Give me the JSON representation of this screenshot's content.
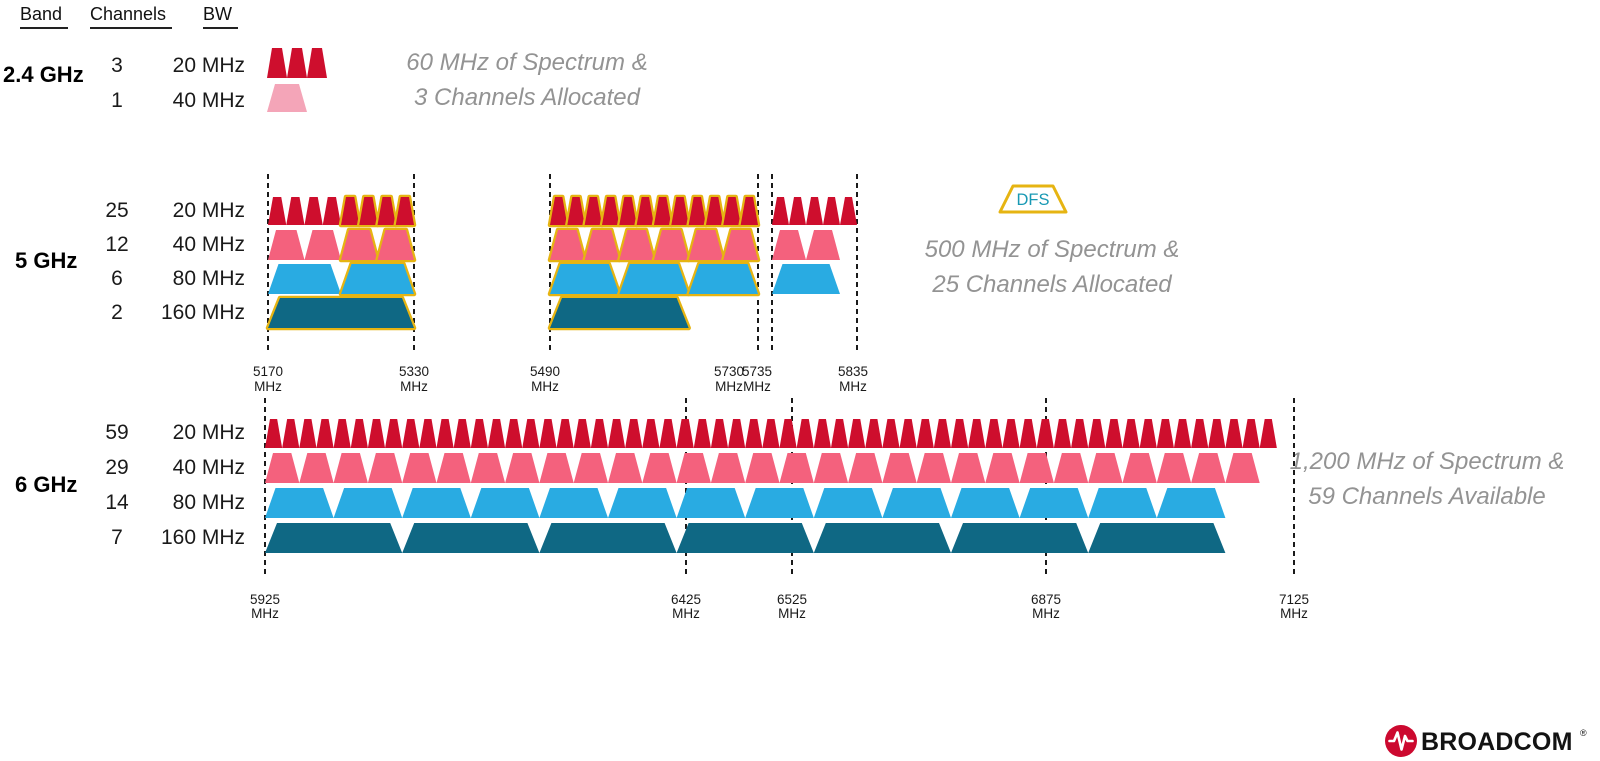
{
  "header": {
    "band": "Band",
    "channels": "Channels",
    "bw": "BW"
  },
  "legend": {
    "label": "DFS"
  },
  "footer": {
    "brand": "BROADCOM",
    "registered": "®"
  },
  "colors": {
    "bw20": "#CE0E2D",
    "bw40": "#F4617D",
    "bw40_light": "#F4A5B8",
    "bw80": "#29ABE2",
    "bw160": "#0F6884",
    "dfs_outline": "#E6B412",
    "dfs_label": "#1899B4",
    "annotation_gray": "#939393",
    "broadcom_red": "#CC092F",
    "text": "#1A1A1A"
  },
  "bands": [
    {
      "id": "b24",
      "label": "2.4 GHz",
      "rows": [
        {
          "channels": "3",
          "bw": "20 MHz"
        },
        {
          "channels": "1",
          "bw": "40 MHz"
        }
      ],
      "annotation": [
        "60 MHz of Spectrum &",
        "3 Channels Allocated"
      ]
    },
    {
      "id": "b5",
      "label": "5 GHz",
      "rows": [
        {
          "channels": "25",
          "bw": "20 MHz"
        },
        {
          "channels": "12",
          "bw": "40 MHz"
        },
        {
          "channels": "6",
          "bw": "80 MHz"
        },
        {
          "channels": "2",
          "bw": "160 MHz"
        }
      ],
      "annotation": [
        "500 MHz of Spectrum &",
        "25 Channels Allocated"
      ]
    },
    {
      "id": "b6",
      "label": "6 GHz",
      "rows": [
        {
          "channels": "59",
          "bw": "20 MHz"
        },
        {
          "channels": "29",
          "bw": "40 MHz"
        },
        {
          "channels": "14",
          "bw": "80 MHz"
        },
        {
          "channels": "7",
          "bw": "160 MHz"
        }
      ],
      "annotation": [
        "1,200 MHz of Spectrum &",
        "59 Channels Available"
      ]
    }
  ],
  "chart_data": {
    "type": "spectrum-diagram",
    "units": "MHz",
    "blocks": [
      {
        "band": "b24",
        "bw": 20,
        "from": 0,
        "count": 3,
        "dfs": false
      },
      {
        "band": "b24",
        "bw": 40,
        "from": 0,
        "count": 1,
        "dfs": false,
        "light": true
      },
      {
        "band": "b5",
        "bw": 20,
        "from": 5170,
        "count": 4,
        "dfs": false
      },
      {
        "band": "b5",
        "bw": 20,
        "from": 5250,
        "count": 4,
        "dfs": true
      },
      {
        "band": "b5",
        "bw": 20,
        "from": 5490,
        "count": 12,
        "dfs": true
      },
      {
        "band": "b5",
        "bw": 20,
        "from": 5735,
        "count": 5,
        "dfs": false
      },
      {
        "band": "b5",
        "bw": 40,
        "from": 5170,
        "count": 2,
        "dfs": false
      },
      {
        "band": "b5",
        "bw": 40,
        "from": 5250,
        "count": 2,
        "dfs": true
      },
      {
        "band": "b5",
        "bw": 40,
        "from": 5490,
        "count": 6,
        "dfs": true
      },
      {
        "band": "b5",
        "bw": 40,
        "from": 5735,
        "count": 2,
        "dfs": false
      },
      {
        "band": "b5",
        "bw": 80,
        "from": 5170,
        "count": 1,
        "dfs": false
      },
      {
        "band": "b5",
        "bw": 80,
        "from": 5250,
        "count": 1,
        "dfs": true
      },
      {
        "band": "b5",
        "bw": 80,
        "from": 5490,
        "count": 3,
        "dfs": true
      },
      {
        "band": "b5",
        "bw": 80,
        "from": 5735,
        "count": 1,
        "dfs": false
      },
      {
        "band": "b5",
        "bw": 160,
        "from": 5170,
        "count": 1,
        "dfs": true
      },
      {
        "band": "b5",
        "bw": 160,
        "from": 5490,
        "count": 1,
        "dfs": true
      },
      {
        "band": "b6",
        "bw": 20,
        "from": 5925,
        "count": 59,
        "dfs": false
      },
      {
        "band": "b6",
        "bw": 40,
        "from": 5925,
        "count": 29,
        "dfs": false
      },
      {
        "band": "b6",
        "bw": 80,
        "from": 5925,
        "count": 14,
        "dfs": false
      },
      {
        "band": "b6",
        "bw": 160,
        "from": 5925,
        "count": 7,
        "dfs": false
      }
    ],
    "gridlines": {
      "b5": [
        5170,
        5330,
        5490,
        5730,
        5735,
        5835
      ],
      "b6": [
        5925,
        6425,
        6525,
        6875,
        7125
      ]
    },
    "ticks": {
      "b5": [
        {
          "f": 5170,
          "label": "5170",
          "unit": "MHz"
        },
        {
          "f": 5330,
          "label": "5330",
          "unit": "MHz"
        },
        {
          "f": 5490,
          "label": "5490",
          "unit": "MHz"
        },
        {
          "f": 5730,
          "label": "5730",
          "unit": "MHz"
        },
        {
          "f": 5735,
          "label": "5735",
          "unit": "MHz"
        },
        {
          "f": 5835,
          "label": "5835",
          "unit": "MHz"
        }
      ],
      "b6": [
        {
          "f": 5925,
          "label": "5925",
          "unit": "MHz"
        },
        {
          "f": 6425,
          "label": "6425",
          "unit": "MHz"
        },
        {
          "f": 6525,
          "label": "6525",
          "unit": "MHz"
        },
        {
          "f": 6875,
          "label": "6875",
          "unit": "MHz"
        },
        {
          "f": 7125,
          "label": "7125",
          "unit": "MHz"
        }
      ]
    }
  }
}
